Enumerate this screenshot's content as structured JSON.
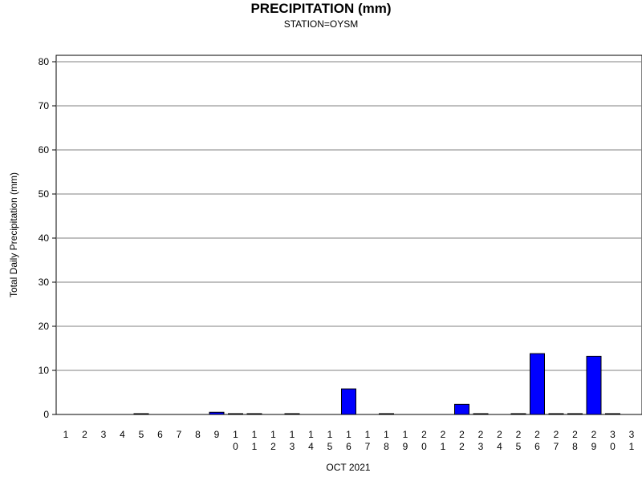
{
  "chart_data": {
    "type": "bar",
    "title": "PRECIPITATION (mm)",
    "subtitle": "STATION=OYSM",
    "ylabel": "Total Daily Precipitation (mm)",
    "xlabel": "OCT 2021",
    "ylim": [
      0,
      80
    ],
    "yticks": [
      0,
      10,
      20,
      30,
      40,
      50,
      60,
      70,
      80
    ],
    "grid": "horizontal",
    "bar_color": "#0000ff",
    "categories": [
      "1",
      "2",
      "3",
      "4",
      "5",
      "6",
      "7",
      "8",
      "9",
      "10",
      "11",
      "12",
      "13",
      "14",
      "15",
      "16",
      "17",
      "18",
      "19",
      "20",
      "21",
      "22",
      "23",
      "24",
      "25",
      "26",
      "27",
      "28",
      "29",
      "30",
      "31"
    ],
    "values": [
      0,
      0,
      0,
      0,
      0.1,
      0,
      0,
      0,
      0.5,
      0.1,
      0.1,
      0,
      0.1,
      0,
      0,
      5.8,
      0,
      0.1,
      0,
      0,
      0,
      2.3,
      0.1,
      0,
      0.1,
      13.8,
      0.1,
      0.1,
      13.2,
      0.1,
      0
    ]
  }
}
